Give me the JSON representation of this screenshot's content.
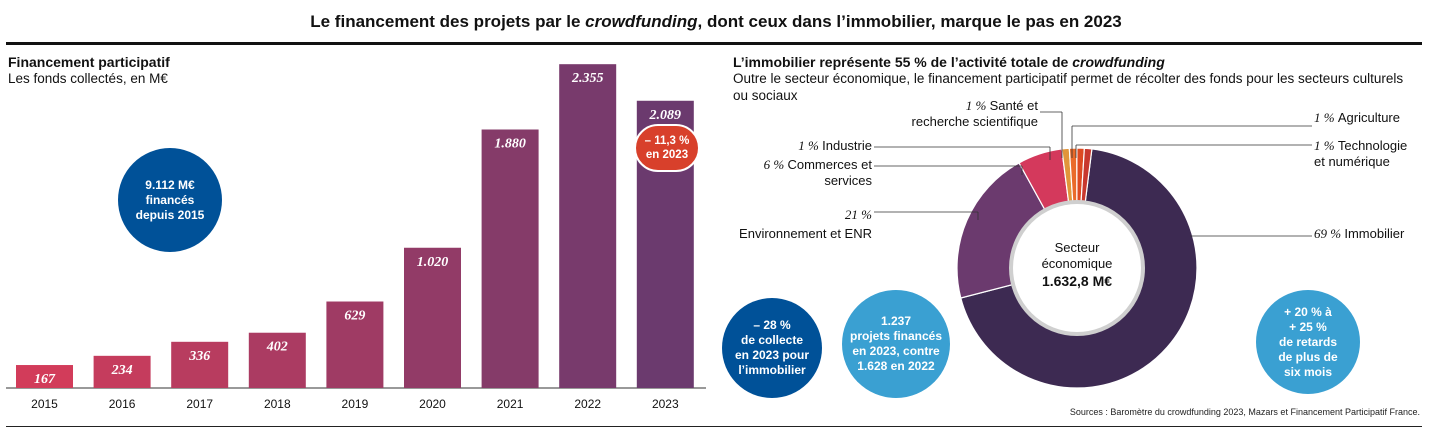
{
  "header": {
    "title": "Le financement des projets par le crowdfunding, dont ceux dans l’immobilier, marque le pas en 2023"
  },
  "left_panel": {
    "title": "Financement participatif",
    "subtitle": "Les fonds collectés, en M€",
    "bubble": "9.112 M€\nfinancés\ndepuis 2015",
    "highlight_badge": "– 11,3 %\nen 2023"
  },
  "right_panel": {
    "title": "L’immobilier représente 55 % de l’activité totale de crowdfunding",
    "subtitle": "Outre le secteur économique, le financement participatif permet de récolter des fonds pour les secteurs culturels ou sociaux",
    "center_label_1": "Secteur",
    "center_label_2": "économique",
    "center_value": "1.632,8 M€",
    "bubbles": [
      "– 28 %\nde collecte\nen 2023 pour\nl’immobilier",
      "1.237\nprojets financés\nen 2023, contre\n1.628 en 2022",
      "+ 20 % à\n+ 25 %\nde retards\nde plus de\nsix mois"
    ]
  },
  "sources": "Sources : Baromètre du crowdfunding 2023, Mazars et Financement Participatif France.",
  "colors": {
    "bar_light": "#d23c5a",
    "bar_dark": "#6b3a6e",
    "navy_bubble": "#005198",
    "light_bubble": "#3aa0d2",
    "badge": "#d8402b",
    "donut_main": "#3d2a52"
  },
  "chart_data": [
    {
      "type": "bar",
      "title": "Financement participatif",
      "subtitle": "Les fonds collectés, en M€",
      "categories": [
        "2015",
        "2016",
        "2017",
        "2018",
        "2019",
        "2020",
        "2021",
        "2022",
        "2023"
      ],
      "values": [
        167,
        234,
        336,
        402,
        629,
        1020,
        1880,
        2355,
        2089
      ],
      "value_labels": [
        "167",
        "234",
        "336",
        "402",
        "629",
        "1.020",
        "1.880",
        "2.355",
        "2.089"
      ],
      "ylim": [
        0,
        2400
      ]
    },
    {
      "type": "pie",
      "title": "L’immobilier représente 55 % de l’activité totale de crowdfunding",
      "slices": [
        {
          "pct_label": "69 %",
          "name": "Immobilier",
          "value": 69,
          "color": "#3d2a52"
        },
        {
          "pct_label": "21 %",
          "name": "Environnement et ENR",
          "value": 21,
          "color": "#6b3a6e"
        },
        {
          "pct_label": "6 %",
          "name": "Commerces et services",
          "value": 6,
          "color": "#d4395c"
        },
        {
          "pct_label": "1 %",
          "name": "Industrie",
          "value": 1,
          "color": "#e1953a"
        },
        {
          "pct_label": "1 %",
          "name": "Santé et recherche scientifique",
          "value": 1,
          "color": "#ea6a2a"
        },
        {
          "pct_label": "1 %",
          "name": "Agriculture",
          "value": 1,
          "color": "#dd4a22"
        },
        {
          "pct_label": "1 %",
          "name": "Technologie et numérique",
          "value": 1,
          "color": "#c8382e"
        }
      ]
    }
  ]
}
